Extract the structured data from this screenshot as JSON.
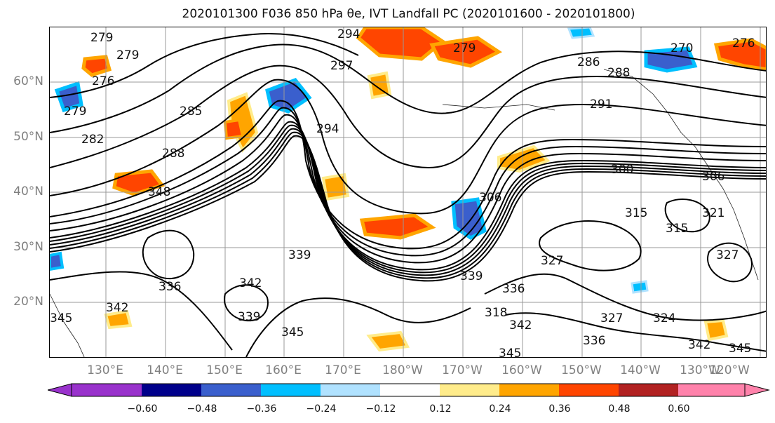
{
  "title": "2020101300 F036 850 hPa θe, IVT Landfall PC (2020101600 - 2020101800)",
  "lat_labels": [
    "60°N",
    "50°N",
    "40°N",
    "30°N",
    "20°N"
  ],
  "lon_labels": [
    "130°E",
    "140°E",
    "150°E",
    "160°E",
    "170°E",
    "180°W",
    "170°W",
    "160°W",
    "150°W",
    "140°W",
    "130°W",
    "120°W"
  ],
  "contour_labels": [
    "279",
    "279",
    "276",
    "279",
    "282",
    "285",
    "288",
    "294",
    "294",
    "297",
    "279",
    "286",
    "288",
    "291",
    "270",
    "276",
    "300",
    "306",
    "306",
    "315",
    "315",
    "321",
    "327",
    "324",
    "327",
    "336",
    "345",
    "342",
    "345",
    "339",
    "342",
    "339",
    "336",
    "345",
    "336",
    "339",
    "342",
    "345",
    "318",
    "327",
    "342",
    "348"
  ],
  "colorbar": {
    "ticks": [
      "−0.60",
      "−0.48",
      "−0.36",
      "−0.24",
      "−0.12",
      "0.12",
      "0.24",
      "0.36",
      "0.48",
      "0.60"
    ],
    "colors": [
      "#9932cc",
      "#00008b",
      "#3a5fcd",
      "#00bfff",
      "#b0e2ff",
      "#ffffff",
      "#ffec8b",
      "#ffa500",
      "#ff4500",
      "#b22222",
      "#ff82ab"
    ]
  }
}
